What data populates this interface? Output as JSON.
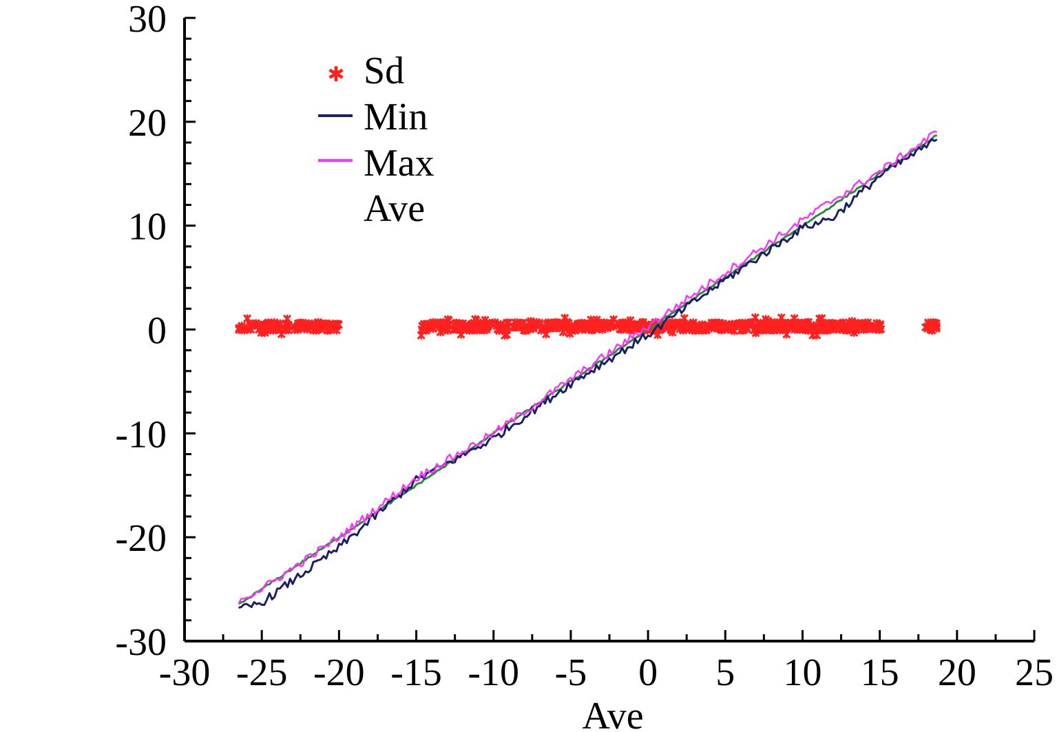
{
  "chart_data": {
    "type": "scatter",
    "title": "",
    "xlabel": "Ave",
    "ylabel": "",
    "xlim": [
      -30,
      25
    ],
    "ylim": [
      -30,
      30
    ],
    "x_ticks": [
      "-30",
      "-25",
      "-20",
      "-15",
      "-10",
      "-5",
      "0",
      "5",
      "10",
      "15",
      "20",
      "25"
    ],
    "y_ticks": [
      "30",
      "20",
      "10",
      "0",
      "-10",
      "-20",
      "-30"
    ],
    "legend": {
      "position": "top-left",
      "entries": [
        {
          "name": "Sd",
          "color": "#ff2020",
          "marker": "asterisk"
        },
        {
          "name": "Min",
          "color": "#1a2060",
          "marker": "line"
        },
        {
          "name": "Max",
          "color": "#ff33ff",
          "marker": "line"
        },
        {
          "name": "Ave",
          "color": "#2e8b3a",
          "marker": "none"
        }
      ]
    },
    "series": [
      {
        "name": "Sd",
        "type": "scatter",
        "color": "#ff2020",
        "x_ranges": [
          [
            -26.5,
            -20.0
          ],
          [
            -14.7,
            15.1
          ],
          [
            17.9,
            18.7
          ]
        ],
        "y_typical": 0.3,
        "y_spread": 0.8
      },
      {
        "name": "Min",
        "type": "line",
        "color": "#1a2060",
        "x": [
          -26.5,
          -25.0,
          -20.0,
          -15.0,
          -10.0,
          -5.0,
          0.0,
          5.0,
          10.0,
          12.0,
          15.0,
          18.7
        ],
        "y": [
          -27.0,
          -26.3,
          -21.0,
          -14.5,
          -10.5,
          -5.2,
          -0.5,
          4.8,
          9.8,
          10.8,
          14.8,
          18.3
        ]
      },
      {
        "name": "Max",
        "type": "line",
        "color": "#ff33ff",
        "x": [
          -26.5,
          -25.0,
          -20.0,
          -15.0,
          -10.0,
          -5.0,
          0.0,
          5.0,
          10.0,
          12.0,
          15.0,
          18.7
        ],
        "y": [
          -26.0,
          -25.0,
          -20.0,
          -14.3,
          -10.0,
          -4.8,
          0.3,
          5.5,
          10.5,
          12.5,
          15.2,
          19.0
        ]
      },
      {
        "name": "Ave",
        "type": "line",
        "color": "#2e8b3a",
        "x": [
          -26.5,
          18.7
        ],
        "y": [
          -26.5,
          18.7
        ]
      }
    ]
  }
}
